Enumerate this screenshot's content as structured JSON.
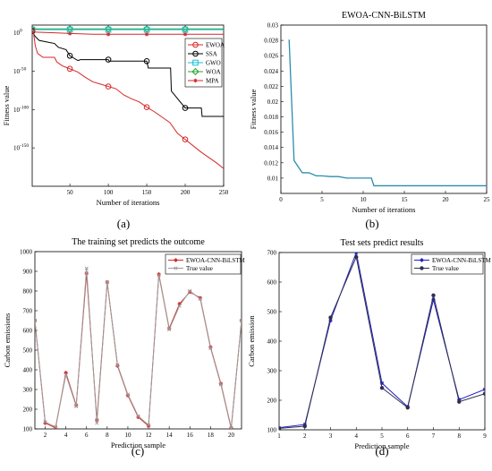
{
  "chart_data": [
    {
      "id": "a",
      "type": "line",
      "caption": "(a)",
      "title": "",
      "xlabel": "Number of iterations",
      "ylabel": "Fitness value",
      "xlim": [
        1,
        250
      ],
      "ylim_log10": [
        -200,
        10
      ],
      "yscale": "log",
      "grid": false,
      "legend_position": "top-right",
      "xticks": [
        50,
        100,
        150,
        200,
        250
      ],
      "ytick_labels": [
        {
          "exp": 0,
          "label": "10",
          "sup": "0"
        },
        {
          "exp": -50,
          "label": "10",
          "sup": "-50"
        },
        {
          "exp": -100,
          "label": "10",
          "sup": "-100"
        },
        {
          "exp": -150,
          "label": "10",
          "sup": "-150"
        }
      ],
      "series": [
        {
          "name": "EWOA",
          "color": "#d62728",
          "marker": "circle",
          "points": [
            [
              1,
              3
            ],
            [
              3,
              -2
            ],
            [
              5,
              -17
            ],
            [
              8,
              -27
            ],
            [
              15,
              -32
            ],
            [
              30,
              -32
            ],
            [
              33,
              -38
            ],
            [
              40,
              -43
            ],
            [
              50,
              -47
            ],
            [
              60,
              -51
            ],
            [
              70,
              -58
            ],
            [
              80,
              -64
            ],
            [
              90,
              -67
            ],
            [
              100,
              -70
            ],
            [
              110,
              -73
            ],
            [
              120,
              -81
            ],
            [
              130,
              -86
            ],
            [
              140,
              -90
            ],
            [
              150,
              -97
            ],
            [
              160,
              -103
            ],
            [
              170,
              -110
            ],
            [
              180,
              -117
            ],
            [
              190,
              -131
            ],
            [
              200,
              -139
            ],
            [
              210,
              -147
            ],
            [
              220,
              -155
            ],
            [
              230,
              -162
            ],
            [
              240,
              -169
            ],
            [
              250,
              -177
            ]
          ]
        },
        {
          "name": "SSA",
          "color": "#000000",
          "marker": "circle",
          "points": [
            [
              1,
              2
            ],
            [
              5,
              -5
            ],
            [
              10,
              -10
            ],
            [
              20,
              -12
            ],
            [
              30,
              -14
            ],
            [
              35,
              -19
            ],
            [
              45,
              -22
            ],
            [
              50,
              -30
            ],
            [
              60,
              -36
            ],
            [
              62,
              -36
            ],
            [
              63,
              -35
            ],
            [
              100,
              -35
            ],
            [
              101,
              -37
            ],
            [
              150,
              -37
            ],
            [
              152,
              -46
            ],
            [
              181,
              -46
            ],
            [
              182,
              -76
            ],
            [
              200,
              -98
            ],
            [
              221,
              -98
            ],
            [
              222,
              -109
            ],
            [
              250,
              -109
            ]
          ]
        },
        {
          "name": "GWO",
          "color": "#17becf",
          "marker": "square",
          "points": [
            [
              1,
              4
            ],
            [
              50,
              4
            ],
            [
              250,
              4
            ]
          ]
        },
        {
          "name": "WOA",
          "color": "#2ca02c",
          "marker": "diamond",
          "points": [
            [
              1,
              5
            ],
            [
              30,
              5
            ],
            [
              50,
              5
            ],
            [
              250,
              5
            ]
          ]
        },
        {
          "name": "MPA",
          "color": "#d62728",
          "marker": "asterisk",
          "points": [
            [
              1,
              1
            ],
            [
              30,
              0
            ],
            [
              50,
              -1
            ],
            [
              80,
              -2
            ],
            [
              100,
              -2
            ],
            [
              150,
              -2
            ],
            [
              200,
              -2
            ],
            [
              250,
              -2
            ]
          ]
        }
      ]
    },
    {
      "id": "b",
      "type": "line",
      "caption": "(b)",
      "title": "EWOA-CNN-BiLSTM",
      "xlabel": "Number of iterations",
      "ylabel": "Fitness value",
      "xlim": [
        0,
        25
      ],
      "ylim": [
        0.008,
        0.03
      ],
      "grid": false,
      "xticks": [
        0,
        5,
        10,
        15,
        20,
        25
      ],
      "yticks": [
        0.01,
        0.012,
        0.014,
        0.016,
        0.018,
        0.02,
        0.022,
        0.024,
        0.026,
        0.028,
        0.03
      ],
      "series": [
        {
          "name": "",
          "color": "#2c8dad",
          "points": [
            [
              1,
              0.0281
            ],
            [
              1.6,
              0.0123
            ],
            [
              2.6,
              0.0107
            ],
            [
              3.4,
              0.0107
            ],
            [
              4.3,
              0.0103
            ],
            [
              5,
              0.0103
            ],
            [
              6,
              0.0102
            ],
            [
              7,
              0.0102
            ],
            [
              8,
              0.01
            ],
            [
              9,
              0.01
            ],
            [
              10,
              0.01
            ],
            [
              11,
              0.01
            ],
            [
              11.3,
              0.009
            ],
            [
              12,
              0.009
            ],
            [
              25,
              0.009
            ]
          ]
        }
      ]
    },
    {
      "id": "c",
      "type": "line",
      "caption": "(c)",
      "title": "The training set predicts the outcome",
      "xlabel": "Prediction sample",
      "ylabel": "Carbon emissions",
      "xlim": [
        1,
        21
      ],
      "ylim": [
        100,
        1000
      ],
      "grid": false,
      "legend_position": "top-right",
      "xticks": [
        2,
        4,
        6,
        8,
        10,
        12,
        14,
        16,
        18,
        20
      ],
      "yticks": [
        100,
        200,
        300,
        400,
        500,
        600,
        700,
        800,
        900,
        1000
      ],
      "x": [
        1,
        2,
        3,
        4,
        5,
        6,
        7,
        8,
        9,
        10,
        11,
        12,
        13,
        14,
        15,
        16,
        17,
        18,
        19,
        20,
        21
      ],
      "series": [
        {
          "name": "EWOA-CNN-BiLSTM",
          "color": "#d62728",
          "marker": "asterisk",
          "values": [
            650,
            130,
            105,
            385,
            220,
            890,
            145,
            845,
            420,
            270,
            160,
            115,
            885,
            610,
            735,
            795,
            765,
            515,
            330,
            105,
            650
          ]
        },
        {
          "name": "True value",
          "color": "#9b9b9b",
          "marker": "x",
          "values": [
            650,
            135,
            110,
            375,
            215,
            915,
            130,
            845,
            425,
            275,
            165,
            120,
            880,
            605,
            725,
            800,
            760,
            510,
            325,
            100,
            650
          ]
        }
      ]
    },
    {
      "id": "d",
      "type": "line",
      "caption": "(d)",
      "title": "Test sets predict results",
      "xlabel": "Prediction sample",
      "ylabel": "Carbon emission",
      "xlim": [
        1,
        9
      ],
      "ylim": [
        100,
        700
      ],
      "grid": false,
      "legend_position": "top-right",
      "xticks": [
        1,
        2,
        3,
        4,
        5,
        6,
        7,
        8,
        9
      ],
      "yticks": [
        100,
        200,
        300,
        400,
        500,
        600,
        700
      ],
      "x": [
        1,
        2,
        3,
        4,
        5,
        6,
        7,
        8,
        9
      ],
      "series": [
        {
          "name": "EWOA-CNN-BiLSTM",
          "color": "#1f1fbf",
          "marker": "asterisk",
          "values": [
            107,
            118,
            470,
            700,
            258,
            178,
            540,
            202,
            237
          ]
        },
        {
          "name": "True value",
          "color": "#2f2f4f",
          "marker": "dot",
          "values": [
            105,
            112,
            480,
            685,
            242,
            175,
            555,
            195,
            222
          ]
        }
      ]
    }
  ]
}
